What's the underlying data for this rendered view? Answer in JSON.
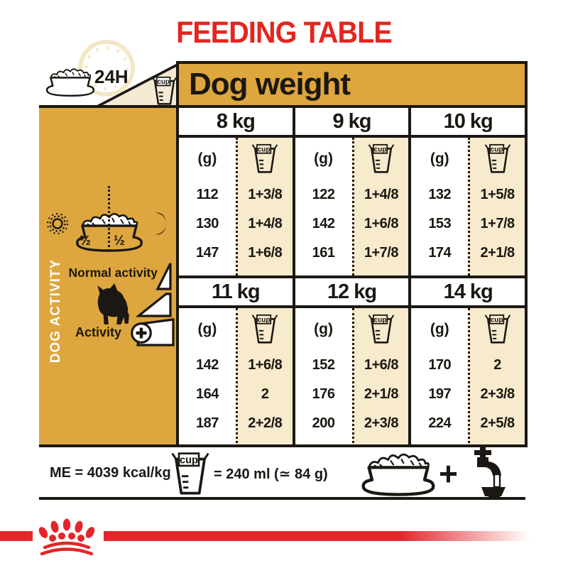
{
  "title": "FEEDING TABLE",
  "header": {
    "dog_weight_label": "Dog weight",
    "h24_label": "24H"
  },
  "sidebar": {
    "axis_label": "DOG ACTIVITY",
    "half_left": "½",
    "half_right": "½",
    "normal_activity_label": "Normal activity",
    "activity_label": "Activity"
  },
  "table": {
    "unit_g_label": "(g)",
    "cup_label": "cup",
    "sections": [
      {
        "columns": [
          {
            "weight": "8 kg",
            "rows": [
              {
                "g": "112",
                "cup": "1+3/8"
              },
              {
                "g": "130",
                "cup": "1+4/8"
              },
              {
                "g": "147",
                "cup": "1+6/8"
              }
            ]
          },
          {
            "weight": "9 kg",
            "rows": [
              {
                "g": "122",
                "cup": "1+4/8"
              },
              {
                "g": "142",
                "cup": "1+6/8"
              },
              {
                "g": "161",
                "cup": "1+7/8"
              }
            ]
          },
          {
            "weight": "10 kg",
            "rows": [
              {
                "g": "132",
                "cup": "1+5/8"
              },
              {
                "g": "153",
                "cup": "1+7/8"
              },
              {
                "g": "174",
                "cup": "2+1/8"
              }
            ]
          }
        ]
      },
      {
        "columns": [
          {
            "weight": "11 kg",
            "rows": [
              {
                "g": "142",
                "cup": "1+6/8"
              },
              {
                "g": "164",
                "cup": "2"
              },
              {
                "g": "187",
                "cup": "2+2/8"
              }
            ]
          },
          {
            "weight": "12 kg",
            "rows": [
              {
                "g": "152",
                "cup": "1+6/8"
              },
              {
                "g": "176",
                "cup": "2+1/8"
              },
              {
                "g": "200",
                "cup": "2+3/8"
              }
            ]
          },
          {
            "weight": "14 kg",
            "rows": [
              {
                "g": "170",
                "cup": "2"
              },
              {
                "g": "197",
                "cup": "2+3/8"
              },
              {
                "g": "224",
                "cup": "2+5/8"
              }
            ]
          }
        ]
      }
    ]
  },
  "footer": {
    "me_label": "ME = 4039 kcal/kg",
    "cup_equals_label": "= 240 ml (≃ 84 g)",
    "plus_sign": "+"
  },
  "colors": {
    "gold": "#DDA63E",
    "cream": "#F7EACD",
    "red": "#E4251F",
    "stripe_red": "#E3262B",
    "ink": "#1b1712"
  },
  "icons": {
    "food-bowl-icon": "bowl with kibble",
    "clock-icon": "faint 24h clock",
    "measuring-cup-icon": "cup",
    "sun-icon": "☀",
    "moon-icon": "☾",
    "dog-silhouette": "french bulldog",
    "activity-plus-icon": "⊕",
    "activity-ramp-icon": "three rising steps",
    "faucet-icon": "tap with water bowl",
    "paw-crown-logo": "royal canin crown of paws"
  }
}
